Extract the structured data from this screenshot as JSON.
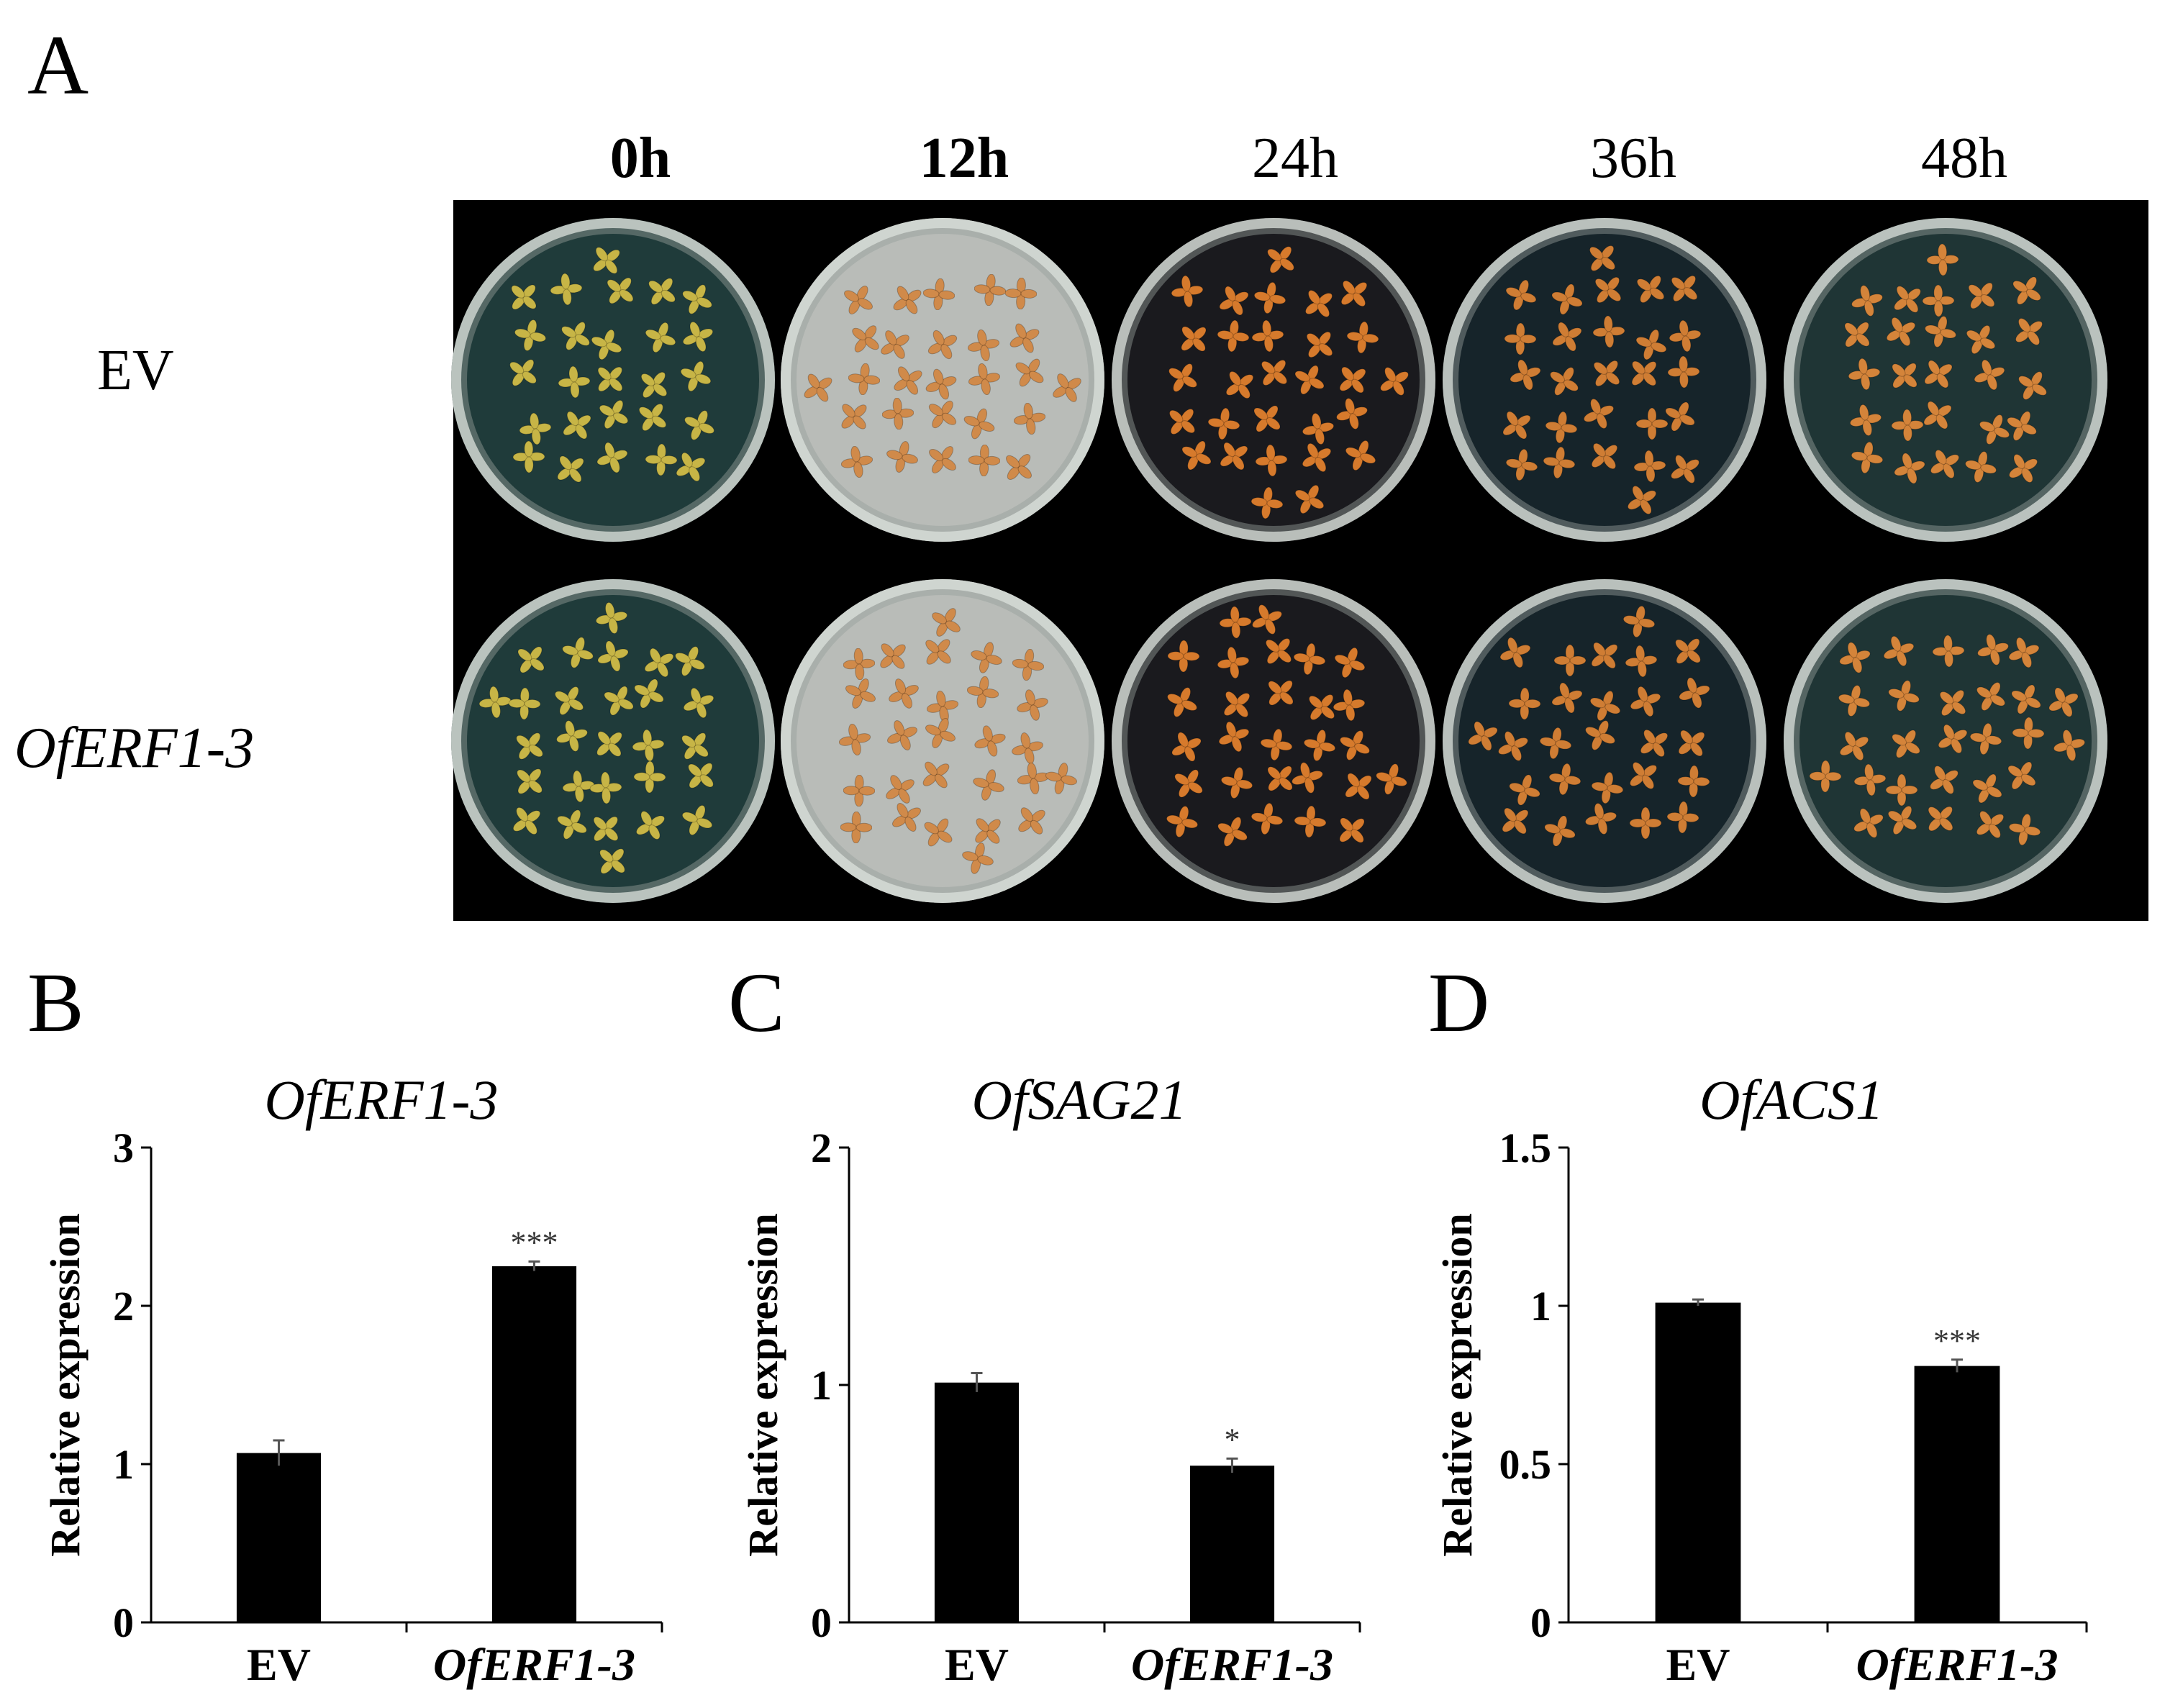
{
  "panels": {
    "a": "A",
    "b": "B",
    "c": "C",
    "d": "D"
  },
  "figure_a": {
    "times": [
      {
        "label": "0h",
        "bold": true
      },
      {
        "label": "12h",
        "bold": true
      },
      {
        "label": "24h",
        "bold": false
      },
      {
        "label": "36h",
        "bold": false
      },
      {
        "label": "48h",
        "bold": false
      }
    ],
    "rows": [
      {
        "label": "EV",
        "italic": false
      },
      {
        "label": "OfERF1-3",
        "italic": true
      }
    ],
    "dish_backgrounds": [
      "#1f3b3a",
      "#b9bcb8",
      "#1a1a1e",
      "#16242a",
      "#1f3535"
    ],
    "flower_colors": [
      "#c7b546",
      "#d08a4a",
      "#d67a2c",
      "#cf7d34",
      "#d4843a"
    ]
  },
  "chart_data": [
    {
      "type": "bar",
      "title": "OfERF1-3",
      "ylabel": "Relative expression",
      "categories": [
        "EV",
        "OfERF1-3"
      ],
      "categories_italic": [
        false,
        true
      ],
      "values": [
        1.07,
        2.25
      ],
      "errors": [
        0.08,
        0.03
      ],
      "significance": [
        "",
        "***"
      ],
      "ylim": [
        0,
        3
      ],
      "yticks": [
        "0",
        "1",
        "2",
        "3"
      ],
      "ytick_values": [
        0,
        1,
        2,
        3
      ]
    },
    {
      "type": "bar",
      "title": "OfSAG21",
      "ylabel": "Relative expression",
      "categories": [
        "EV",
        "OfERF1-3"
      ],
      "categories_italic": [
        false,
        true
      ],
      "values": [
        1.01,
        0.66
      ],
      "errors": [
        0.04,
        0.03
      ],
      "significance": [
        "",
        "*"
      ],
      "ylim": [
        0,
        2
      ],
      "yticks": [
        "0",
        "1",
        "2"
      ],
      "ytick_values": [
        0,
        1,
        2
      ]
    },
    {
      "type": "bar",
      "title": "OfACS1",
      "ylabel": "Relative expression",
      "categories": [
        "EV",
        "OfERF1-3"
      ],
      "categories_italic": [
        false,
        true
      ],
      "values": [
        1.01,
        0.81
      ],
      "errors": [
        0.01,
        0.02
      ],
      "significance": [
        "",
        "***"
      ],
      "ylim": [
        0,
        1.5
      ],
      "yticks": [
        "0",
        "0.5",
        "1",
        "1.5"
      ],
      "ytick_values": [
        0,
        0.5,
        1,
        1.5
      ]
    }
  ]
}
